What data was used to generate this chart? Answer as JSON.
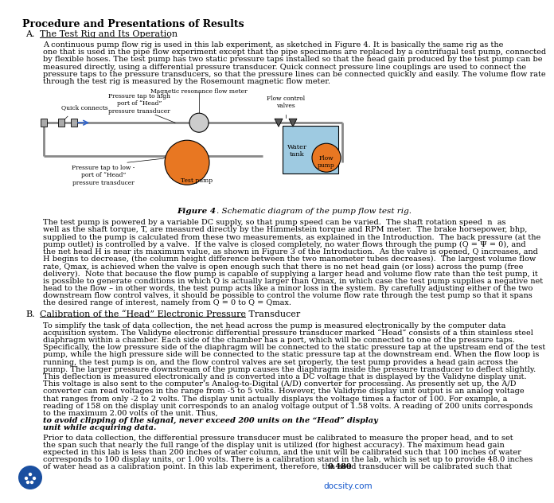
{
  "title": "Procedure and Presentations of Results",
  "section_a_title": "A.",
  "section_a_heading": "The Test Rig and Its Operation",
  "figure_caption_bold": "Figure 4",
  "figure_caption_rest": ". Schematic diagram of the pump flow test rig.",
  "section_b_title": "B.",
  "section_b_heading": "Calibration of the “Head” Electronic Pressure Transducer",
  "bg_color": "#ffffff",
  "text_color": "#000000",
  "title_fontsize": 9.0,
  "body_fontsize": 7.0,
  "heading_fontsize": 8.0,
  "docsity_color": "#1155cc",
  "para1_lines": [
    "A continuous pump flow rig is used in this lab experiment, as sketched in Figure 4. It is basically the same rig as the",
    "one that is used in the pipe flow experiment except that the pipe specimens are replaced by a centrifugal test pump, connected",
    "by flexible hoses. The test pump has two static pressure taps installed so that the head gain produced by the test pump can be",
    "measured directly, using a differential pressure transducer. Quick connect pressure line couplings are used to connect the",
    "pressure taps to the pressure transducers, so that the pressure lines can be connected quickly and easily. The volume flow rate",
    "through the test rig is measured by the Rosemount magnetic flow meter."
  ],
  "para2_lines": [
    "The test pump is powered by a variable DC supply, so that pump speed can be varied.  The shaft rotation speed  n  as",
    "well as the shaft torque, T, are measured directly by the Himmelstein torque and RPM meter.  The brake horsepower, bhp,",
    "supplied to the pump is calculated from these two measurements, as explained in the Introduction.  The back pressure (at the",
    "pump outlet) is controlled by a valve.  If the valve is closed completely, no water flows through the pump (Q = Ψ = 0), and",
    "the net head H is near its maximum value, as shown in Figure 3 of the Introduction.  As the valve is opened, Q increases, and",
    "H begins to decrease, (the column height difference between the two manometer tubes decreases).  The largest volume flow",
    "rate, Qmax, is achieved when the valve is open enough such that there is no net head gain (or loss) across the pump (free",
    "delivery).  Note that because the flow pump is capable of supplying a larger head and volume flow rate than the test pump, it",
    "is possible to generate conditions in which Q is actually larger than Qmax, in which case the test pump supplies a negative net",
    "head to the flow – in other words, the test pump acts like a minor loss in the system. By carefully adjusting either of the two",
    "downstream flow control valves, it should be possible to control the volume flow rate through the test pump so that it spans",
    "the desired range of interest, namely from Q = 0 to Q = Qmax."
  ],
  "sec_b_lines": [
    "To simplify the task of data collection, the net head across the pump is measured electronically by the computer data",
    "acquisition system. The Validyne electronic differential pressure transducer marked “Head” consists of a thin stainless steel",
    "diaphragm within a chamber. Each side of the chamber has a port, which will be connected to one of the pressure taps.",
    "Specifically, the low pressure side of the diaphragm will be connected to the static pressure tap at the upstream end of the test",
    "pump, while the high pressure side will be connected to the static pressure tap at the downstream end. When the flow loop is",
    "running, the test pump is on, and the flow control valves are set properly, the test pump provides a head gain across the",
    "pump. The larger pressure downstream of the pump causes the diaphragm inside the pressure transducer to deflect slightly.",
    "This deflection is measured electronically and is converted into a DC voltage that is displayed by the Validyne display unit.",
    "This voltage is also sent to the computer’s Analog-to-Digital (A/D) converter for processing. As presently set up, the A/D",
    "converter can read voltages in the range from -5 to 5 volts. However, the Validyne display unit output is an analog voltage",
    "that ranges from only -2 to 2 volts. The display unit actually displays the voltage times a factor of 100. For example, a",
    "reading of 158 on the display unit corresponds to an analog voltage output of 1.58 volts. A reading of 200 units corresponds",
    "to the maximum 2.00 volts of the unit. Thus,"
  ],
  "sec_b_bold_lines": [
    "to avoid clipping of the signal, never exceed 200 units on the “Head” display",
    "unit while acquiring data."
  ],
  "sec_b2_lines": [
    "Prior to data collection, the differential pressure transducer must be calibrated to measure the proper head, and to set",
    "the span such that nearly the full range of the display unit is utilized (for highest accuracy). The maximum head gain",
    "expected in this lab is less than 200 inches of water column, and the unit will be calibrated such that 100 inches of water",
    "corresponds to 100 display units, or 1.00 volts. There is a calibration stand in the lab, which is set up to provide 48.0 inches",
    "of water head as a calibration point. In this lab experiment, therefore, the head transducer will be calibrated such that "
  ],
  "sec_b2_last_bold": "0.480"
}
